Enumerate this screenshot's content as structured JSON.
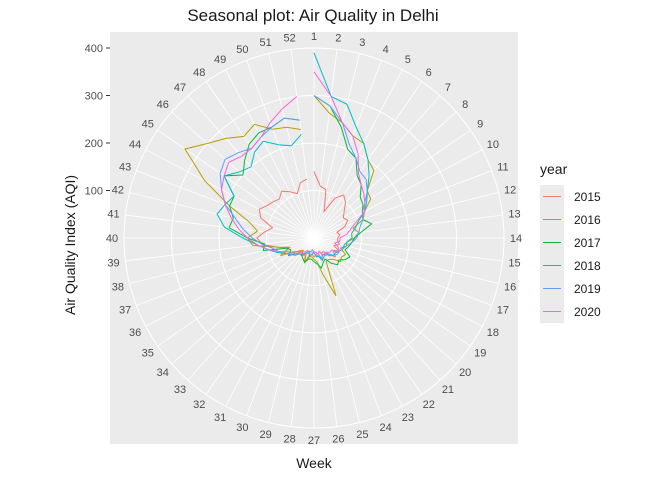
{
  "chart_data": {
    "type": "line",
    "coord": "polar",
    "title": "Seasonal plot: Air Quality in Delhi",
    "xlabel": "Week",
    "ylabel": "Air Quality Index (AQI)",
    "theta_ticks": [
      "1",
      "2",
      "3",
      "4",
      "5",
      "6",
      "7",
      "8",
      "9",
      "10",
      "11",
      "12",
      "13",
      "14",
      "15",
      "16",
      "17",
      "18",
      "19",
      "20",
      "21",
      "22",
      "23",
      "24",
      "25",
      "26",
      "27",
      "28",
      "29",
      "30",
      "31",
      "32",
      "33",
      "34",
      "35",
      "36",
      "37",
      "38",
      "39",
      "40",
      "41",
      "42",
      "43",
      "44",
      "45",
      "46",
      "47",
      "48",
      "49",
      "50",
      "51",
      "52"
    ],
    "r_ticks": [
      100,
      200,
      300,
      400
    ],
    "r_ticks_labels": [
      "100",
      "200",
      "300",
      "400"
    ],
    "rlim": [
      0,
      400
    ],
    "grid": true,
    "legend": {
      "title": "year",
      "position": "right"
    },
    "series": [
      {
        "name": "2015",
        "color": "#F8766D",
        "values": [
          140,
          110,
          105,
          60,
          95,
          110,
          100,
          85,
          75,
          80,
          70,
          50,
          55,
          50,
          50,
          55,
          45,
          60,
          50,
          60,
          45,
          35,
          35,
          50,
          40,
          35,
          40,
          35,
          35,
          55,
          35,
          45,
          35,
          40,
          55,
          70,
          60,
          80,
          110,
          120,
          105,
          90,
          120,
          130,
          120,
          115,
          110,
          120,
          110,
          100,
          120,
          125
        ]
      },
      {
        "name": "2016",
        "color": "#B79F00",
        "values": [
          300,
          265,
          250,
          230,
          225,
          200,
          190,
          150,
          145,
          120,
          110,
          85,
          95,
          85,
          70,
          70,
          60,
          75,
          70,
          75,
          60,
          55,
          55,
          130,
          80,
          50,
          45,
          40,
          40,
          55,
          40,
          45,
          35,
          45,
          50,
          80,
          55,
          80,
          130,
          140,
          120,
          140,
          190,
          260,
          330,
          300,
          280,
          260,
          270,
          245,
          240,
          230
        ]
      },
      {
        "name": "2017",
        "color": "#00BA38",
        "values": [
          300,
          280,
          240,
          200,
          190,
          160,
          150,
          130,
          125,
          115,
          110,
          125,
          100,
          85,
          80,
          75,
          70,
          85,
          80,
          70,
          75,
          65,
          50,
          55,
          65,
          55,
          50,
          45,
          45,
          55,
          50,
          45,
          45,
          50,
          65,
          55,
          60,
          110,
          105,
          140,
          180,
          175,
          190,
          190,
          230,
          200,
          220,
          240,
          250,
          250,
          260,
          250
        ]
      },
      {
        "name": "2018",
        "color": "#00BFC4",
        "values": [
          390,
          300,
          290,
          250,
          225,
          200,
          175,
          150,
          135,
          120,
          100,
          90,
          80,
          80,
          70,
          65,
          65,
          60,
          55,
          55,
          45,
          40,
          45,
          50,
          40,
          40,
          30,
          35,
          40,
          30,
          35,
          40,
          45,
          50,
          55,
          70,
          85,
          100,
          120,
          150,
          190,
          210,
          200,
          190,
          230,
          210,
          200,
          220,
          230,
          210,
          200,
          220
        ]
      },
      {
        "name": "2019",
        "color": "#619CFF",
        "values": [
          300,
          280,
          250,
          210,
          190,
          170,
          165,
          150,
          130,
          115,
          110,
          100,
          95,
          90,
          80,
          70,
          65,
          60,
          60,
          55,
          50,
          40,
          40,
          45,
          35,
          30,
          30,
          25,
          30,
          35,
          35,
          40,
          45,
          55,
          60,
          70,
          80,
          90,
          110,
          130,
          150,
          170,
          200,
          220,
          240,
          250,
          240,
          230,
          240,
          250,
          260,
          250
        ]
      },
      {
        "name": "2020",
        "color": "#F564E3",
        "values": [
          350,
          300,
          250,
          230,
          200,
          165,
          150,
          140,
          130,
          120,
          95,
          80,
          70,
          55,
          55,
          45,
          55,
          60,
          45,
          45,
          40,
          45,
          40,
          30,
          35,
          30,
          30,
          30,
          30,
          30,
          30,
          35,
          40,
          50,
          55,
          60,
          80,
          100,
          120,
          140,
          160,
          180,
          200,
          220,
          230,
          240,
          230,
          230,
          240,
          260,
          280,
          300
        ]
      }
    ]
  }
}
